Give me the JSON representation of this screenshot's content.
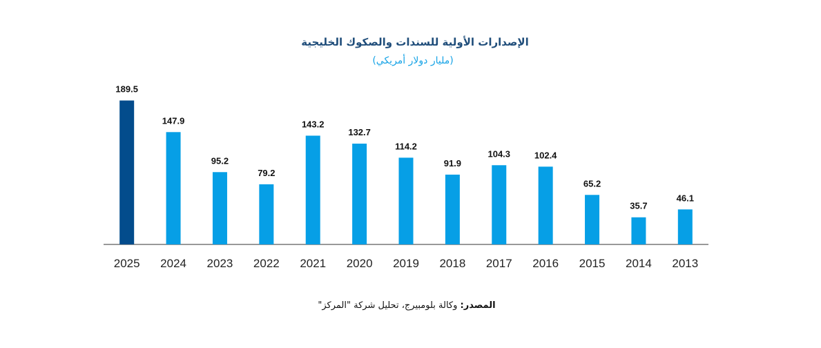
{
  "chart_data": {
    "type": "bar",
    "title": "الإصدارات الأولية للسندات والصكوك الخليجية",
    "subtitle": "(مليار دولار أمريكي)",
    "categories": [
      "2025",
      "2024",
      "2023",
      "2022",
      "2021",
      "2020",
      "2019",
      "2018",
      "2017",
      "2016",
      "2015",
      "2014",
      "2013"
    ],
    "values": [
      189.5,
      147.9,
      95.2,
      79.2,
      143.2,
      132.7,
      114.2,
      91.9,
      104.3,
      102.4,
      65.2,
      35.7,
      46.1
    ],
    "bar_colors": [
      "#034c8c",
      "#069fe6",
      "#069fe6",
      "#069fe6",
      "#069fe6",
      "#069fe6",
      "#069fe6",
      "#069fe6",
      "#069fe6",
      "#069fe6",
      "#069fe6",
      "#069fe6",
      "#069fe6"
    ],
    "data_labels": true,
    "grid": false,
    "y_axis_visible": false,
    "legend": false
  },
  "source": {
    "label": "المصدر:",
    "text": "وكالة بلومبيرج، تحليل شركة \"المركز\""
  },
  "colors": {
    "title": "#1f4d7a",
    "subtitle": "#16a3e6",
    "highlight_bar": "#034c8c",
    "bar": "#069fe6",
    "axis": "#333333"
  }
}
